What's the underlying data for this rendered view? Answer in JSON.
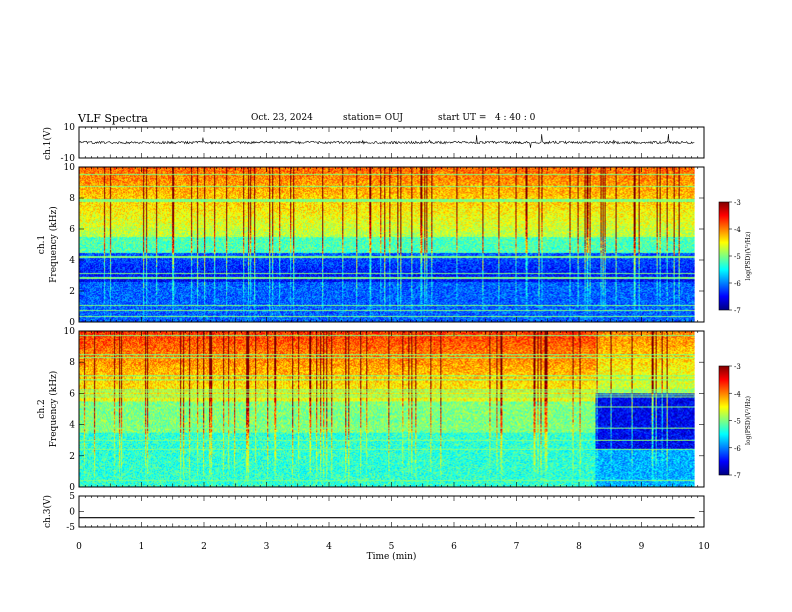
{
  "header": {
    "title": "VLF Spectra",
    "date": "Oct. 23, 2024",
    "station": "station= OUJ",
    "start": "start UT =   4 : 40 : 0"
  },
  "chart_data": [
    {
      "type": "line",
      "panel": "ch1-waveform",
      "ylabel": "ch.1(V)",
      "ylim": [
        -10,
        10
      ],
      "ytick_labels": [
        "10",
        "-10"
      ],
      "xlim": [
        0,
        10
      ],
      "baseline": 0,
      "x_end": 9.85
    },
    {
      "type": "heatmap",
      "panel": "ch1-spectrogram",
      "ylabel_channel": "ch.1",
      "ylabel": "Frequency (kHz)",
      "ylim": [
        0,
        10
      ],
      "ytick_labels": [
        "0",
        "2",
        "4",
        "6",
        "8",
        "10"
      ],
      "xlim": [
        0,
        10
      ],
      "x_end": 9.85,
      "colorbar": {
        "label": "log(PSD)(V²/Hz)",
        "range": [
          -7,
          -3
        ],
        "tick_labels": [
          "-3",
          "-4",
          "-5",
          "-6",
          "-7"
        ]
      }
    },
    {
      "type": "heatmap",
      "panel": "ch2-spectrogram",
      "ylabel_channel": "ch.2",
      "ylabel": "Frequency (kHz)",
      "ylim": [
        0,
        10
      ],
      "ytick_labels": [
        "0",
        "2",
        "4",
        "6",
        "8",
        "10"
      ],
      "xlim": [
        0,
        10
      ],
      "x_end": 9.85,
      "regime_change_x": 8.25,
      "colorbar": {
        "label": "log(PSD)(V²/Hz)",
        "range": [
          -7,
          -3
        ],
        "tick_labels": [
          "-3",
          "-4",
          "-5",
          "-6",
          "-7"
        ]
      }
    },
    {
      "type": "line",
      "panel": "ch3-waveform",
      "ylabel": "ch.3(V)",
      "ylim": [
        -5,
        5
      ],
      "ytick_labels": [
        "5",
        "0",
        "-5"
      ],
      "xlim": [
        0,
        10
      ],
      "level": -2,
      "x_end": 9.85,
      "xlabel": "Time (min)",
      "xtick_labels": [
        "0",
        "1",
        "2",
        "3",
        "4",
        "5",
        "6",
        "7",
        "8",
        "9",
        "10"
      ]
    }
  ]
}
